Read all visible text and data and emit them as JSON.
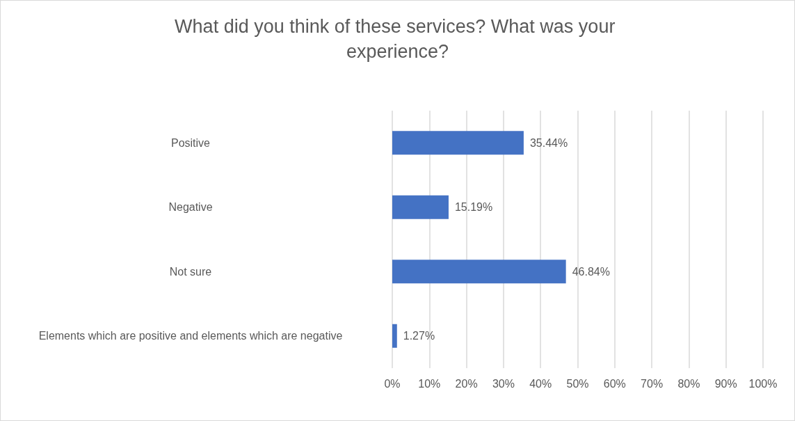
{
  "chart_data": {
    "type": "bar",
    "orientation": "horizontal",
    "title": "What did you think of these services? What was your experience?",
    "categories": [
      "Positive",
      "Negative",
      "Not sure",
      "Elements which are positive and elements which are negative"
    ],
    "values": [
      35.44,
      15.19,
      46.84,
      1.27
    ],
    "value_labels": [
      "35.44%",
      "15.19%",
      "46.84%",
      "1.27%"
    ],
    "color": "#4472c4",
    "xlim": [
      0,
      100
    ],
    "xticks": [
      {
        "value": 0,
        "label": "0%"
      },
      {
        "value": 10,
        "label": "10%"
      },
      {
        "value": 20,
        "label": "20%"
      },
      {
        "value": 30,
        "label": "30%"
      },
      {
        "value": 40,
        "label": "40%"
      },
      {
        "value": 50,
        "label": "50%"
      },
      {
        "value": 60,
        "label": "60%"
      },
      {
        "value": 70,
        "label": "70%"
      },
      {
        "value": 80,
        "label": "80%"
      },
      {
        "value": 90,
        "label": "90%"
      },
      {
        "value": 100,
        "label": "100%"
      }
    ],
    "grid": "x",
    "legend": false
  }
}
